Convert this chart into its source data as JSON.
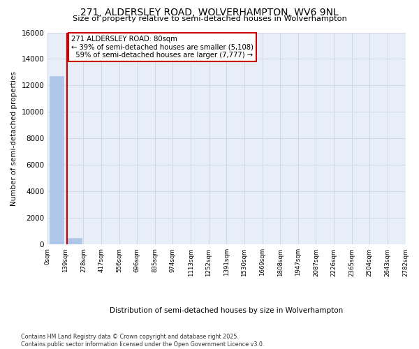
{
  "title": "271, ALDERSLEY ROAD, WOLVERHAMPTON, WV6 9NL",
  "subtitle": "Size of property relative to semi-detached houses in Wolverhampton",
  "xlabel": "Distribution of semi-detached houses by size in Wolverhampton",
  "ylabel": "Number of semi-detached properties",
  "footnote": "Contains HM Land Registry data © Crown copyright and database right 2025.\nContains public sector information licensed under the Open Government Licence v3.0.",
  "bin_labels": [
    "0sqm",
    "139sqm",
    "278sqm",
    "417sqm",
    "556sqm",
    "696sqm",
    "835sqm",
    "974sqm",
    "1113sqm",
    "1252sqm",
    "1391sqm",
    "1530sqm",
    "1669sqm",
    "1808sqm",
    "1947sqm",
    "2087sqm",
    "2226sqm",
    "2365sqm",
    "2504sqm",
    "2643sqm",
    "2782sqm"
  ],
  "bar_heights": [
    12700,
    500,
    0,
    0,
    0,
    0,
    0,
    0,
    0,
    0,
    0,
    0,
    0,
    0,
    0,
    0,
    0,
    0,
    0,
    0
  ],
  "bar_color": "#aec6e8",
  "bar_edgecolor": "#aec6e8",
  "grid_color": "#d0d8e8",
  "bg_color": "#e8eef8",
  "property_size": 80,
  "property_label": "271 ALDERSLEY ROAD: 80sqm",
  "pct_smaller": 39,
  "n_smaller": 5108,
  "pct_larger": 59,
  "n_larger": 7777,
  "vline_color": "#cc0000",
  "annotation_box_color": "#cc0000",
  "ylim": [
    0,
    16000
  ],
  "yticks": [
    0,
    2000,
    4000,
    6000,
    8000,
    10000,
    12000,
    14000,
    16000
  ]
}
